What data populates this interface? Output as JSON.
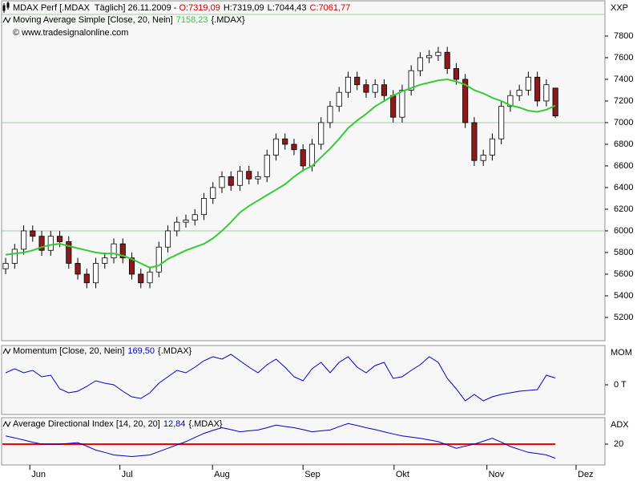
{
  "chart_data": [
    {
      "type": "candlestick",
      "title": "MDAX Perf [.MDAX  Täglich] 26.11.2009 - ",
      "ohlc_label": [
        "O:7319,09",
        "H:7319,09",
        "L:7044,43",
        "C:7061,77"
      ],
      "ohlc_colors": [
        "#cc0000",
        "#000000",
        "#000000",
        "#cc0000"
      ],
      "copyright": "© www.tradesignalonline.com",
      "scale_label": "XXP",
      "up_color": "#ffffff",
      "down_color": "#8b1a1a",
      "open": [
        5650,
        5700,
        5830,
        6000,
        5950,
        5820,
        5950,
        5900,
        5700,
        5600,
        5520,
        5700,
        5750,
        5880,
        5750,
        5600,
        5520,
        5620,
        5850,
        6000,
        6080,
        6100,
        6150,
        6300,
        6400,
        6500,
        6420,
        6550,
        6480,
        6500,
        6700,
        6850,
        6800,
        6750,
        6600,
        6800,
        7000,
        7150,
        7280,
        7420,
        7350,
        7280,
        7350,
        7250,
        7050,
        7300,
        7480,
        7600,
        7620,
        7650,
        7500,
        7400,
        7000,
        6650,
        6700,
        6850,
        7150,
        7250,
        7300,
        7420,
        7200,
        7319.09
      ],
      "high": [
        5750,
        5880,
        6050,
        6050,
        6000,
        6000,
        6000,
        5950,
        5750,
        5650,
        5750,
        5800,
        5930,
        5930,
        5800,
        5650,
        5670,
        5900,
        6050,
        6130,
        6150,
        6200,
        6350,
        6450,
        6550,
        6550,
        6600,
        6600,
        6550,
        6750,
        6900,
        6900,
        6850,
        6800,
        6850,
        7050,
        7200,
        7330,
        7470,
        7470,
        7400,
        7400,
        7400,
        7300,
        7350,
        7530,
        7650,
        7670,
        7700,
        7700,
        7550,
        7450,
        7050,
        6750,
        6900,
        7200,
        7300,
        7350,
        7470,
        7470,
        7400,
        7319.09
      ],
      "low": [
        5600,
        5650,
        5780,
        5900,
        5770,
        5770,
        5850,
        5650,
        5550,
        5470,
        5470,
        5650,
        5700,
        5700,
        5550,
        5470,
        5470,
        5570,
        5800,
        5950,
        6030,
        6050,
        6100,
        6250,
        6350,
        6370,
        6370,
        6430,
        6430,
        6450,
        6650,
        6750,
        6700,
        6550,
        6550,
        6750,
        6950,
        7100,
        7230,
        7300,
        7230,
        7230,
        7200,
        7000,
        7000,
        7250,
        7430,
        7550,
        7570,
        7450,
        7350,
        6950,
        6600,
        6600,
        6650,
        6800,
        7100,
        7200,
        7250,
        7150,
        7150,
        7044.43
      ],
      "close": [
        5700,
        5830,
        6000,
        5950,
        5820,
        5950,
        5900,
        5700,
        5600,
        5520,
        5700,
        5750,
        5880,
        5750,
        5600,
        5520,
        5620,
        5850,
        6000,
        6080,
        6100,
        6150,
        6300,
        6400,
        6500,
        6420,
        6550,
        6480,
        6500,
        6700,
        6850,
        6800,
        6750,
        6600,
        6800,
        7000,
        7150,
        7280,
        7420,
        7350,
        7280,
        7350,
        7250,
        7050,
        7300,
        7480,
        7600,
        7620,
        7650,
        7500,
        7400,
        7000,
        6650,
        6700,
        6850,
        7150,
        7250,
        7300,
        7420,
        7200,
        7350,
        7061.77
      ],
      "series": [
        {
          "name": "Moving Average Simple [Close, 20, Nein]",
          "value_label": "7158,23",
          "source": "{.MDAX}",
          "color": "#33cc33",
          "values": [
            5780,
            5790,
            5800,
            5820,
            5850,
            5870,
            5880,
            5860,
            5840,
            5820,
            5800,
            5790,
            5790,
            5770,
            5740,
            5700,
            5660,
            5680,
            5740,
            5780,
            5820,
            5850,
            5880,
            5930,
            6000,
            6080,
            6170,
            6230,
            6280,
            6330,
            6380,
            6430,
            6500,
            6560,
            6600,
            6680,
            6760,
            6850,
            6950,
            7020,
            7080,
            7150,
            7200,
            7250,
            7290,
            7320,
            7350,
            7370,
            7390,
            7400,
            7380,
            7350,
            7300,
            7270,
            7230,
            7200,
            7160,
            7140,
            7110,
            7100,
            7120,
            7158.23
          ]
        }
      ],
      "xlim": [
        -0.45,
        66.5
      ],
      "xticks": [
        {
          "value": 2.68,
          "label": "Jun"
        },
        {
          "value": 12.68,
          "label": "Jul"
        },
        {
          "value": 22.95,
          "label": "Aug"
        },
        {
          "value": 33.0,
          "label": "Sep"
        },
        {
          "value": 43.1,
          "label": "Okt"
        },
        {
          "value": 53.4,
          "label": "Nov"
        },
        {
          "value": 63.3,
          "label": "Dez"
        }
      ],
      "ylim": [
        4985,
        8133
      ],
      "yticks": [
        5200,
        5400,
        5600,
        5800,
        6000,
        6200,
        6400,
        6600,
        6800,
        7000,
        7200,
        7400,
        7600,
        7800
      ],
      "gridlines": [
        6000,
        7000,
        8000
      ]
    },
    {
      "type": "line",
      "scale_label": "MOM",
      "series": [
        {
          "name": "Momentum [Close, 20, Nein]",
          "value_label": "169,50",
          "source": "{.MDAX}",
          "color": "#0000cc",
          "values": [
            300,
            400,
            300,
            360,
            200,
            240,
            -100,
            -200,
            -160,
            -40,
            100,
            40,
            0,
            -160,
            -300,
            -340,
            -200,
            40,
            200,
            360,
            300,
            440,
            600,
            700,
            640,
            760,
            600,
            440,
            300,
            500,
            640,
            440,
            200,
            100,
            400,
            560,
            300,
            560,
            700,
            440,
            300,
            480,
            560,
            160,
            200,
            360,
            500,
            700,
            560,
            160,
            -100,
            -400,
            -240,
            -400,
            -300,
            -240,
            -200,
            -160,
            -140,
            -120,
            240,
            169.5
          ]
        }
      ],
      "ylim": [
        -740,
        1000
      ],
      "yticks": [
        {
          "value": 0,
          "label": "0 T"
        }
      ]
    },
    {
      "type": "line",
      "scale_label": "ADX",
      "series": [
        {
          "name": "Average Directional Index [14, 20, 20]",
          "value_label": "12,84",
          "source": "{.MDAX}",
          "color": "#0000cc",
          "values": [
            24.2,
            23.2,
            22.1,
            21,
            20,
            20,
            20,
            20.4,
            20.8,
            19,
            17,
            15.8,
            14.5,
            14.1,
            13.7,
            14.1,
            14.5,
            16.2,
            17.9,
            19.6,
            21.3,
            23.4,
            25.5,
            27,
            28.4,
            27.4,
            26.3,
            26.8,
            27.2,
            28.4,
            29.7,
            29,
            28.4,
            27.4,
            26.3,
            26.8,
            27.2,
            28.9,
            30.5,
            29.5,
            28.4,
            27.4,
            26.3,
            25.2,
            24.2,
            23.6,
            23,
            22.2,
            21.3,
            19.6,
            17.9,
            19,
            20,
            21.5,
            23,
            21,
            18.8,
            17.3,
            15.8,
            15.2,
            14.5,
            12.84
          ]
        }
      ],
      "ylim": [
        9.4,
        33.9
      ],
      "yticks": [
        20
      ],
      "threshold": {
        "value": 20,
        "color": "#ff0000"
      }
    }
  ]
}
